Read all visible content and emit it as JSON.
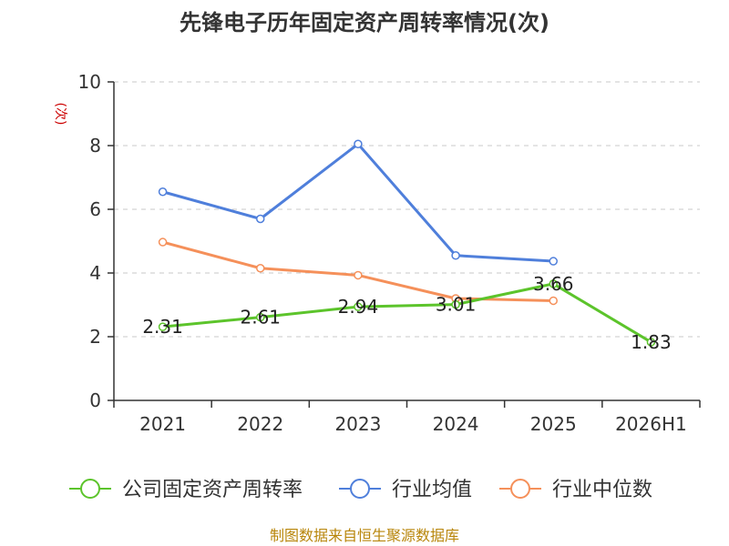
{
  "chart_data": {
    "type": "line",
    "title": "先锋电子历年固定资产周转率情况(次)",
    "ylabel": "(次)",
    "xlabel": "",
    "categories": [
      "2021",
      "2022",
      "2023",
      "2024",
      "2025",
      "2026H1"
    ],
    "ylim": [
      0,
      10
    ],
    "yticks": [
      0,
      2,
      4,
      6,
      8,
      10
    ],
    "grid": true,
    "legend_position": "bottom",
    "series": [
      {
        "name": "公司固定资产周转率",
        "color": "#5cc42b",
        "values": [
          2.31,
          2.61,
          2.94,
          3.01,
          3.66,
          1.83
        ],
        "labels": [
          "2.31",
          "2.61",
          "2.94",
          "3.01",
          "3.66",
          "1.83"
        ]
      },
      {
        "name": "行业均值",
        "color": "#4f7fdb",
        "values": [
          6.55,
          5.7,
          8.05,
          4.55,
          4.37,
          null
        ]
      },
      {
        "name": "行业中位数",
        "color": "#f5905a",
        "values": [
          4.97,
          4.15,
          3.93,
          3.2,
          3.13,
          null
        ]
      }
    ]
  },
  "footer": {
    "source": "制图数据来自恒生聚源数据库"
  }
}
